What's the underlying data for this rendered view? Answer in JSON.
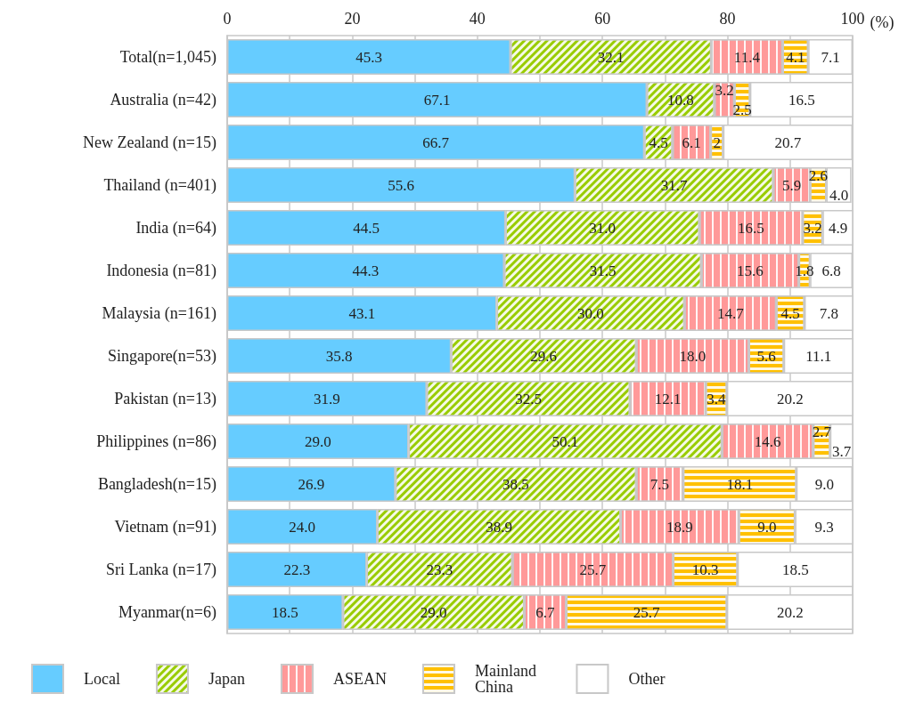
{
  "chart_data": {
    "type": "bar",
    "orientation": "horizontal",
    "stacked": true,
    "xlabel": "(%)",
    "categories": [
      "Total(n=1,045)",
      "Australia (n=42)",
      "New Zealand (n=15)",
      "Thailand (n=401)",
      "India (n=64)",
      "Indonesia (n=81)",
      "Malaysia (n=161)",
      "Singapore(n=53)",
      "Pakistan (n=13)",
      "Philippines (n=86)",
      "Bangladesh(n=15)",
      "Vietnam (n=91)",
      "Sri Lanka (n=17)",
      "Myanmar(n=6)"
    ],
    "series": [
      {
        "name": "Local",
        "color": "#66ccff",
        "values": [
          45.3,
          67.1,
          66.7,
          55.6,
          44.5,
          44.3,
          43.1,
          35.8,
          31.9,
          29.0,
          26.9,
          24.0,
          22.3,
          18.5
        ],
        "value_labels": [
          "45.3",
          "67.1",
          "66.7",
          "55.6",
          "44.5",
          "44.3",
          "43.1",
          "35.8",
          "31.9",
          "29.0",
          "26.9",
          "24.0",
          "22.3",
          "18.5"
        ]
      },
      {
        "name": "Japan",
        "color": "#99cc00",
        "values": [
          32.1,
          10.8,
          4.5,
          31.7,
          31.0,
          31.5,
          30.0,
          29.6,
          32.5,
          50.1,
          38.5,
          38.9,
          23.3,
          29.0
        ],
        "value_labels": [
          "32.1",
          "10.8",
          "4.5",
          "31.7",
          "31.0",
          "31.5",
          "30.0",
          "29.6",
          "32.5",
          "50.1",
          "38.5",
          "38.9",
          "23.3",
          "29.0"
        ]
      },
      {
        "name": "ASEAN",
        "color": "#ff9999",
        "values": [
          11.4,
          3.2,
          6.1,
          5.9,
          16.5,
          15.6,
          14.7,
          18.0,
          12.1,
          14.6,
          7.5,
          18.9,
          25.7,
          6.7
        ],
        "value_labels": [
          "11.4",
          "3.2",
          "6.1",
          "5.9",
          "16.5",
          "15.6",
          "14.7",
          "18.0",
          "12.1",
          "14.6",
          "7.5",
          "18.9",
          "25.7",
          "6.7"
        ]
      },
      {
        "name": "Mainland China",
        "color": "#ffc000",
        "values": [
          4.1,
          2.5,
          2,
          2.6,
          3.2,
          1.8,
          4.5,
          5.6,
          3.4,
          2.7,
          18.1,
          9.0,
          10.3,
          25.7
        ],
        "value_labels": [
          "4.1",
          "2.5",
          "2",
          "2.6",
          "3.2",
          "1.8",
          "4.5",
          "5.6",
          "3.4",
          "2.7",
          "18.1",
          "9.0",
          "10.3",
          "25.7"
        ]
      },
      {
        "name": "Other",
        "color": "#ffffff",
        "values": [
          7.1,
          16.5,
          20.7,
          4.0,
          4.9,
          6.8,
          7.8,
          11.1,
          20.2,
          3.7,
          9.0,
          9.3,
          18.5,
          20.2
        ],
        "value_labels": [
          "7.1",
          "16.5",
          "20.7",
          "4.0",
          "4.9",
          "6.8",
          "7.8",
          "11.1",
          "20.2",
          "3.7",
          "9.0",
          "9.3",
          "18.5",
          "20.2"
        ]
      }
    ],
    "xlim": [
      0,
      100
    ],
    "xticks": [
      0,
      {
        "value": 10,
        "label": null
      },
      20,
      {
        "value": 30,
        "label": null
      },
      40,
      {
        "value": 50,
        "label": null
      },
      60,
      {
        "value": 70,
        "label": null
      },
      80,
      {
        "value": 90,
        "label": null
      },
      100
    ],
    "grid": "x",
    "legend": "bottom"
  }
}
